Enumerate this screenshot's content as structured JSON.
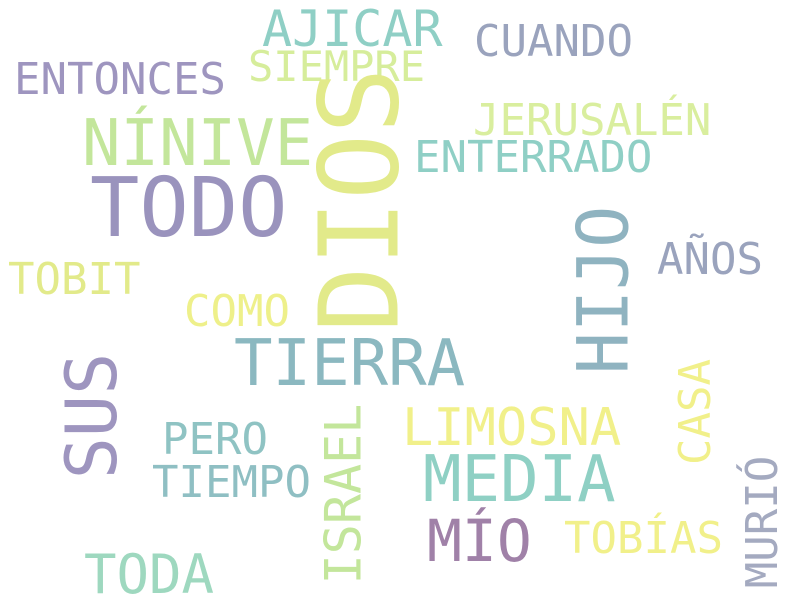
{
  "words": [
    {
      "id": "dios",
      "text": "DIOS",
      "color": "#e2ea8a"
    },
    {
      "id": "todo",
      "text": "TODO",
      "color": "#9a93bd"
    },
    {
      "id": "ninive",
      "text": "NÍNIVE",
      "color": "#c3e69b"
    },
    {
      "id": "hijo",
      "text": "HIJO",
      "color": "#8fb3c0"
    },
    {
      "id": "tierra",
      "text": "TIERRA",
      "color": "#8bb8c0"
    },
    {
      "id": "sus",
      "text": "SUS",
      "color": "#9e95bf"
    },
    {
      "id": "media",
      "text": "MEDIA",
      "color": "#8fd0c4"
    },
    {
      "id": "mio",
      "text": "MÍO",
      "color": "#a081a8"
    },
    {
      "id": "ajicar",
      "text": "AJICAR",
      "color": "#8fcfc5"
    },
    {
      "id": "cuando",
      "text": "CUANDO",
      "color": "#9aa3bd"
    },
    {
      "id": "entonces",
      "text": "ENTONCES",
      "color": "#9e95bf"
    },
    {
      "id": "siempre",
      "text": "SIEMPRE",
      "color": "#d6ed9b"
    },
    {
      "id": "jerusalen",
      "text": "JERUSALÉN",
      "color": "#d9ee9e"
    },
    {
      "id": "enterrado",
      "text": "ENTERRADO",
      "color": "#8fcfc5"
    },
    {
      "id": "tobit",
      "text": "TOBIT",
      "color": "#e2ea8a"
    },
    {
      "id": "como",
      "text": "COMO",
      "color": "#eef08a"
    },
    {
      "id": "anos",
      "text": "AÑOS",
      "color": "#9aa3bd"
    },
    {
      "id": "limosna",
      "text": "LIMOSNA",
      "color": "#f1f08a"
    },
    {
      "id": "casa",
      "text": "CASA",
      "color": "#f1f08a"
    },
    {
      "id": "pero",
      "text": "PERO",
      "color": "#8fc3c3"
    },
    {
      "id": "israel",
      "text": "ISRAEL",
      "color": "#c3e69b"
    },
    {
      "id": "tiempo",
      "text": "TIEMPO",
      "color": "#8fbfc3"
    },
    {
      "id": "tobias",
      "text": "TOBÍAS",
      "color": "#f1f08a"
    },
    {
      "id": "murio",
      "text": "MURIÓ",
      "color": "#a4aac0"
    },
    {
      "id": "toda",
      "text": "TODA",
      "color": "#9ed8bf"
    }
  ]
}
